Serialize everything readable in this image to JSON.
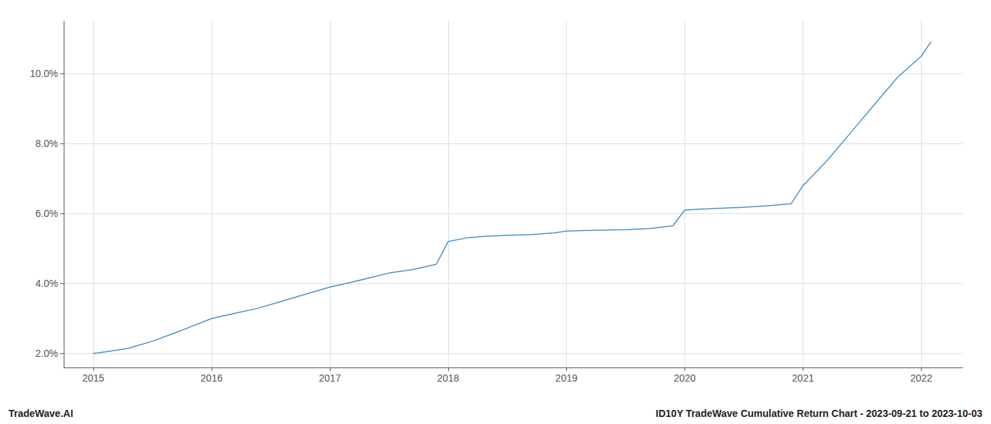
{
  "chart_data": {
    "type": "line",
    "x": [
      2015.0,
      2015.15,
      2015.3,
      2015.5,
      2015.7,
      2015.85,
      2016.0,
      2016.2,
      2016.4,
      2016.6,
      2016.8,
      2017.0,
      2017.2,
      2017.5,
      2017.7,
      2017.9,
      2018.0,
      2018.15,
      2018.3,
      2018.5,
      2018.7,
      2018.9,
      2019.0,
      2019.2,
      2019.5,
      2019.7,
      2019.9,
      2020.0,
      2020.1,
      2020.3,
      2020.5,
      2020.7,
      2020.9,
      2021.0,
      2021.2,
      2021.4,
      2021.6,
      2021.8,
      2022.0,
      2022.08
    ],
    "values": [
      2.0,
      2.07,
      2.15,
      2.35,
      2.6,
      2.8,
      3.0,
      3.15,
      3.3,
      3.5,
      3.7,
      3.9,
      4.05,
      4.3,
      4.4,
      4.55,
      5.2,
      5.3,
      5.35,
      5.38,
      5.4,
      5.45,
      5.5,
      5.52,
      5.54,
      5.57,
      5.65,
      6.1,
      6.12,
      6.15,
      6.18,
      6.22,
      6.28,
      6.8,
      7.5,
      8.3,
      9.1,
      9.9,
      10.5,
      10.9
    ],
    "color": "#4a90c4",
    "xlim": [
      2014.75,
      2022.35
    ],
    "ylim": [
      1.6,
      11.5
    ],
    "xticks": [
      2015,
      2016,
      2017,
      2018,
      2019,
      2020,
      2021,
      2022
    ],
    "yticks": [
      {
        "value": 2.0,
        "label": "2.0%"
      },
      {
        "value": 4.0,
        "label": "4.0%"
      },
      {
        "value": 6.0,
        "label": "6.0%"
      },
      {
        "value": 8.0,
        "label": "8.0%"
      },
      {
        "value": 10.0,
        "label": "10.0%"
      }
    ],
    "grid": true,
    "annotations": [
      "TradeWave.AI",
      "ID10Y TradeWave Cumulative Return Chart - 2023-09-21 to 2023-10-03"
    ]
  }
}
